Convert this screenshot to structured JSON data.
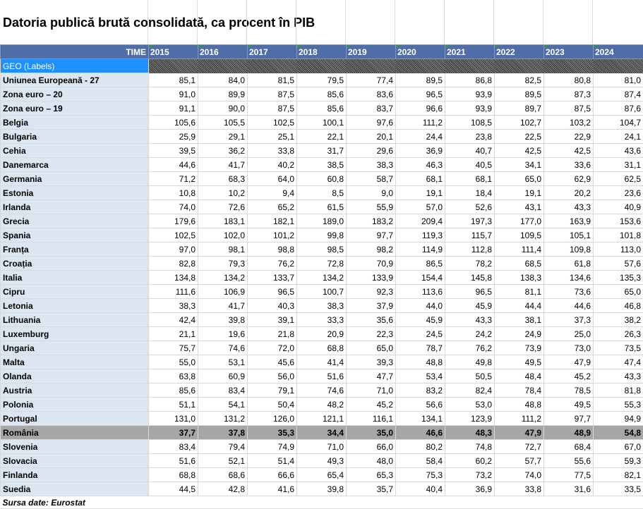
{
  "title": "Datoria publică brută consolidată, ca procent în PIB",
  "header": {
    "time_label": "TIME",
    "geo_label": "GEO (Labels)"
  },
  "years": [
    "2015",
    "2016",
    "2017",
    "2018",
    "2019",
    "2020",
    "2021",
    "2022",
    "2023",
    "2024"
  ],
  "rows": [
    {
      "label": "Uniunea Europeană - 27",
      "values": [
        "85,1",
        "84,0",
        "81,5",
        "79,5",
        "77,4",
        "89,5",
        "86,8",
        "82,5",
        "80,8",
        "81,0"
      ]
    },
    {
      "label": "Zona euro – 20",
      "values": [
        "91,0",
        "89,9",
        "87,5",
        "85,6",
        "83,6",
        "96,5",
        "93,9",
        "89,5",
        "87,3",
        "87,4"
      ]
    },
    {
      "label": "Zona euro – 19",
      "values": [
        "91,1",
        "90,0",
        "87,5",
        "85,6",
        "83,7",
        "96,6",
        "93,9",
        "89,7",
        "87,5",
        "87,6"
      ]
    },
    {
      "label": "Belgia",
      "values": [
        "105,6",
        "105,5",
        "102,5",
        "100,1",
        "97,6",
        "111,2",
        "108,5",
        "102,7",
        "103,2",
        "104,7"
      ]
    },
    {
      "label": "Bulgaria",
      "values": [
        "25,9",
        "29,1",
        "25,1",
        "22,1",
        "20,1",
        "24,4",
        "23,8",
        "22,5",
        "22,9",
        "24,1"
      ]
    },
    {
      "label": "Cehia",
      "values": [
        "39,5",
        "36,2",
        "33,8",
        "31,7",
        "29,6",
        "36,9",
        "40,7",
        "42,5",
        "42,5",
        "43,6"
      ]
    },
    {
      "label": "Danemarca",
      "values": [
        "44,6",
        "41,7",
        "40,2",
        "38,5",
        "38,3",
        "46,3",
        "40,5",
        "34,1",
        "33,6",
        "31,1"
      ]
    },
    {
      "label": "Germania",
      "values": [
        "71,2",
        "68,3",
        "64,0",
        "60,8",
        "58,7",
        "68,1",
        "68,1",
        "65,0",
        "62,9",
        "62,5"
      ]
    },
    {
      "label": "Estonia",
      "values": [
        "10,8",
        "10,2",
        "9,4",
        "8,5",
        "9,0",
        "19,1",
        "18,4",
        "19,1",
        "20,2",
        "23,6"
      ]
    },
    {
      "label": "Irlanda",
      "values": [
        "74,0",
        "72,6",
        "65,2",
        "61,5",
        "55,9",
        "57,0",
        "52,6",
        "43,1",
        "43,3",
        "40,9"
      ]
    },
    {
      "label": "Grecia",
      "values": [
        "179,6",
        "183,1",
        "182,1",
        "189,0",
        "183,2",
        "209,4",
        "197,3",
        "177,0",
        "163,9",
        "153,6"
      ]
    },
    {
      "label": "Spania",
      "values": [
        "102,5",
        "102,0",
        "101,2",
        "99,8",
        "97,7",
        "119,3",
        "115,7",
        "109,5",
        "105,1",
        "101,8"
      ]
    },
    {
      "label": "Franța",
      "values": [
        "97,0",
        "98,1",
        "98,8",
        "98,5",
        "98,2",
        "114,9",
        "112,8",
        "111,4",
        "109,8",
        "113,0"
      ]
    },
    {
      "label": "Croația",
      "values": [
        "82,8",
        "79,3",
        "76,2",
        "72,8",
        "70,9",
        "86,5",
        "78,2",
        "68,5",
        "61,8",
        "57,6"
      ]
    },
    {
      "label": "Italia",
      "values": [
        "134,8",
        "134,2",
        "133,7",
        "134,2",
        "133,9",
        "154,4",
        "145,8",
        "138,3",
        "134,6",
        "135,3"
      ]
    },
    {
      "label": "Cipru",
      "values": [
        "111,6",
        "106,9",
        "96,5",
        "100,7",
        "92,3",
        "113,6",
        "96,5",
        "81,1",
        "73,6",
        "65,0"
      ]
    },
    {
      "label": "Letonia",
      "values": [
        "38,3",
        "41,7",
        "40,3",
        "38,3",
        "37,9",
        "44,0",
        "45,9",
        "44,4",
        "44,6",
        "46,8"
      ]
    },
    {
      "label": "Lithuania",
      "values": [
        "42,4",
        "39,8",
        "39,1",
        "33,3",
        "35,6",
        "45,9",
        "43,3",
        "38,1",
        "37,3",
        "38,2"
      ]
    },
    {
      "label": "Luxemburg",
      "values": [
        "21,1",
        "19,6",
        "21,8",
        "20,9",
        "22,3",
        "24,5",
        "24,2",
        "24,9",
        "25,0",
        "26,3"
      ]
    },
    {
      "label": "Ungaria",
      "values": [
        "75,7",
        "74,6",
        "72,0",
        "68,8",
        "65,0",
        "78,7",
        "76,2",
        "73,9",
        "73,0",
        "73,5"
      ]
    },
    {
      "label": "Malta",
      "values": [
        "55,0",
        "53,1",
        "45,6",
        "41,4",
        "39,3",
        "48,8",
        "49,8",
        "49,5",
        "47,9",
        "47,4"
      ]
    },
    {
      "label": "Olanda",
      "values": [
        "63,8",
        "60,9",
        "56,0",
        "51,6",
        "47,7",
        "53,4",
        "50,5",
        "48,4",
        "45,2",
        "43,3"
      ]
    },
    {
      "label": "Austria",
      "values": [
        "85,6",
        "83,4",
        "79,1",
        "74,6",
        "71,0",
        "83,2",
        "82,4",
        "78,4",
        "78,5",
        "81,8"
      ]
    },
    {
      "label": "Polonia",
      "values": [
        "51,1",
        "54,1",
        "50,4",
        "48,2",
        "45,2",
        "56,6",
        "53,0",
        "48,8",
        "49,5",
        "55,3"
      ]
    },
    {
      "label": "Portugal",
      "values": [
        "131,0",
        "131,2",
        "126,0",
        "121,1",
        "116,1",
        "134,1",
        "123,9",
        "111,2",
        "97,7",
        "94,9"
      ]
    },
    {
      "label": "România",
      "values": [
        "37,7",
        "37,8",
        "35,3",
        "34,4",
        "35,0",
        "46,6",
        "48,3",
        "47,9",
        "48,9",
        "54,8"
      ],
      "highlight": true
    },
    {
      "label": "Slovenia",
      "values": [
        "83,4",
        "79,4",
        "74,9",
        "71,0",
        "66,0",
        "80,2",
        "74,8",
        "72,7",
        "68,4",
        "67,0"
      ]
    },
    {
      "label": "Slovacia",
      "values": [
        "51,6",
        "52,1",
        "51,4",
        "49,3",
        "48,0",
        "58,4",
        "60,2",
        "57,7",
        "55,6",
        "59,3"
      ]
    },
    {
      "label": "Finlanda",
      "values": [
        "68,8",
        "68,6",
        "66,6",
        "65,4",
        "65,3",
        "75,3",
        "73,2",
        "74,0",
        "77,5",
        "82,1"
      ]
    },
    {
      "label": "Suedia",
      "values": [
        "44,5",
        "42,8",
        "41,6",
        "39,8",
        "35,7",
        "40,4",
        "36,9",
        "33,8",
        "31,6",
        "33,5"
      ]
    }
  ],
  "source": "Sursa date: Eurostat",
  "colors": {
    "header_bg": "#4f6ea8",
    "geo_bg": "#1e90ff",
    "label_bg": "#dce6f1",
    "highlight_bg": "#a6a6a6"
  }
}
